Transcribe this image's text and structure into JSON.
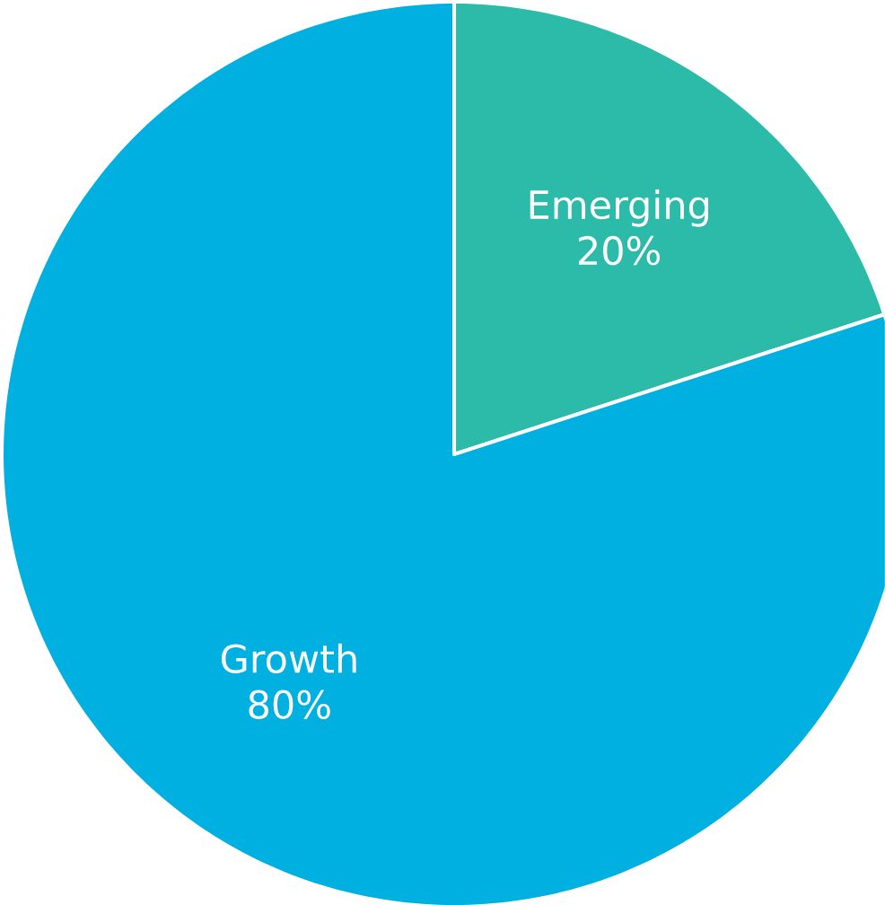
{
  "chart_data": {
    "type": "pie",
    "categories": [
      "Emerging",
      "Growth"
    ],
    "values": [
      20,
      80
    ],
    "colors": [
      "#2bbba8",
      "#00b0e0"
    ],
    "value_labels": [
      "20%",
      "80%"
    ]
  }
}
